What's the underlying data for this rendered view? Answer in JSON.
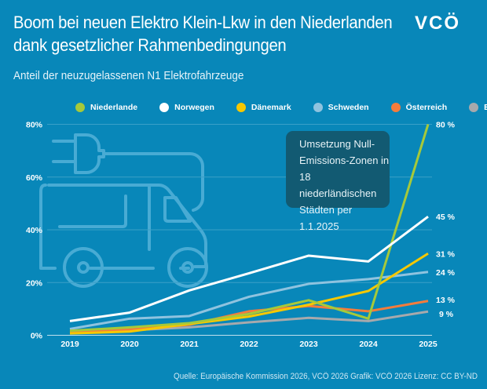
{
  "header": {
    "title_line1": "Boom bei neuen Elektro Klein-Lkw in den Niederlanden",
    "title_line2": "dank gesetzlicher Rahmenbedingungen",
    "subtitle": "Anteil der neuzugelassenen N1 Elektrofahrzeuge",
    "logo": "VCÖ"
  },
  "annotation": "Umsetzung Null-Emissions-Zonen in 18 niederländischen Städten per 1.1.2025",
  "source": "Quelle: Europäische Kommission 2026, VCÖ 2026 Grafik: VCÖ 2026 Lizenz: CC BY-ND",
  "colors": {
    "background": "#0887b9",
    "Niederlande": "#a6c93a",
    "Norwegen": "#ffffff",
    "Dänemark": "#f7c800",
    "Schweden": "#8fc3df",
    "Österreich": "#f47c3c",
    "EU": "#a7a9ac"
  },
  "chart_data": {
    "type": "line",
    "title": "Anteil der neuzugelassenen N1 Elektrofahrzeuge",
    "x": [
      "2019",
      "2020",
      "2021",
      "2022",
      "2023",
      "2024",
      "2025"
    ],
    "ylim": [
      0,
      80
    ],
    "yticks": [
      "0%",
      "20%",
      "40%",
      "60%",
      "80%"
    ],
    "grid": true,
    "legend": "top",
    "series": [
      {
        "name": "Niederlande",
        "values": [
          1.7,
          3,
          4.6,
          8.1,
          13.3,
          6.3,
          80
        ],
        "end_label": "80 %"
      },
      {
        "name": "Norwegen",
        "values": [
          5.4,
          8.6,
          17,
          23.5,
          30.2,
          28,
          45
        ],
        "end_label": "45 %"
      },
      {
        "name": "Dänemark",
        "values": [
          0.7,
          1.4,
          4.3,
          7.1,
          11.6,
          16.8,
          31
        ],
        "end_label": "31 %"
      },
      {
        "name": "Schweden",
        "values": [
          2.4,
          6.3,
          7.3,
          14.6,
          19.5,
          21.3,
          24
        ],
        "end_label": "24 %"
      },
      {
        "name": "Österreich",
        "values": [
          1,
          2.2,
          4,
          9.1,
          11.1,
          9.1,
          13
        ],
        "end_label": "13 %"
      },
      {
        "name": "EU",
        "values": [
          1.4,
          1.9,
          3,
          4.9,
          6.6,
          5.4,
          9
        ],
        "end_label": "9 %"
      }
    ]
  }
}
